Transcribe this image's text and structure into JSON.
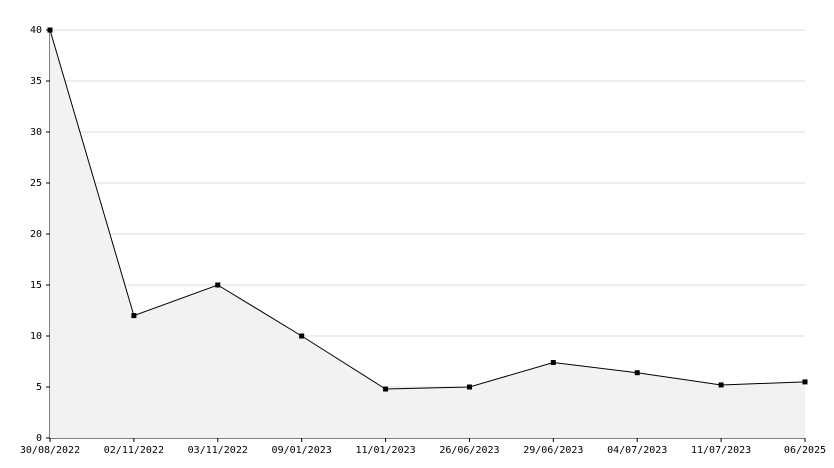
{
  "chart_data": {
    "type": "line",
    "categories": [
      "30/08/2022",
      "02/11/2022",
      "03/11/2022",
      "09/01/2023",
      "11/01/2023",
      "26/06/2023",
      "29/06/2023",
      "04/07/2023",
      "11/07/2023",
      "06/2025"
    ],
    "values": [
      40,
      12,
      15,
      10,
      4.8,
      5.0,
      7.4,
      6.4,
      5.2,
      5.5
    ],
    "color": "#000000",
    "area_color": "#f2f2f2",
    "ylim": [
      0,
      40
    ],
    "yticks": [
      0,
      5,
      10,
      15,
      20,
      25,
      30,
      35,
      40
    ],
    "grid": true
  }
}
